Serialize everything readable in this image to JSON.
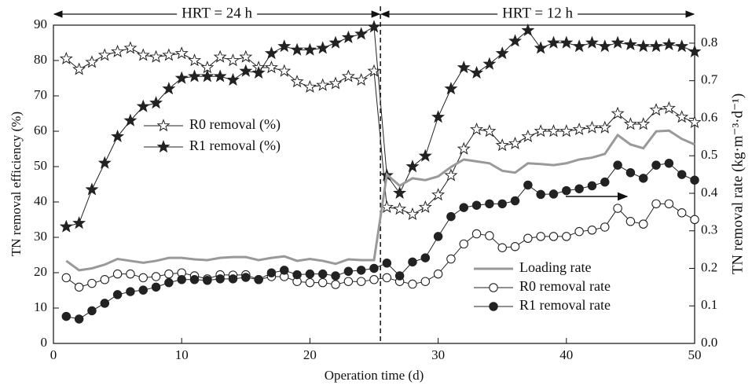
{
  "chart_data": {
    "type": "line",
    "x_label": "Operation time (d)",
    "y_label": "TN removal efficiency (%)",
    "y2_label": "TN  removal rate (kg·m⁻³·d⁻¹)",
    "x": [
      1,
      2,
      3,
      4,
      5,
      6,
      7,
      8,
      9,
      10,
      11,
      12,
      13,
      14,
      15,
      16,
      17,
      18,
      19,
      20,
      21,
      22,
      23,
      24,
      25,
      26,
      27,
      28,
      29,
      30,
      31,
      32,
      33,
      34,
      35,
      36,
      37,
      38,
      39,
      40,
      41,
      42,
      43,
      44,
      45,
      46,
      47,
      48,
      49,
      50
    ],
    "xlim": [
      0,
      50
    ],
    "xticks": [
      0,
      10,
      20,
      30,
      40,
      50
    ],
    "ylim": [
      0,
      90
    ],
    "yticks": [
      0,
      10,
      20,
      30,
      40,
      50,
      60,
      70,
      80,
      90
    ],
    "y2lim": [
      0,
      0.848
    ],
    "y2ticks": [
      {
        "value": 0,
        "label": "0.0"
      },
      0.1,
      0.2,
      0.3,
      0.4,
      0.5,
      0.6,
      0.7,
      0.8
    ],
    "annotations": [
      {
        "text": "HRT = 24 h",
        "from": 0,
        "to": 25.5
      },
      {
        "text": "HRT = 12 h",
        "from": 25.5,
        "to": 50
      }
    ],
    "series": [
      {
        "name": "R0 removal (%)",
        "color": "#222222",
        "marker": "open-star",
        "values": [
          80.5,
          77.5,
          79.5,
          81.5,
          82.5,
          83.5,
          81.5,
          81,
          81.5,
          82,
          80,
          78,
          81,
          80,
          81,
          78,
          78,
          77,
          74,
          72.5,
          73,
          73.5,
          75.5,
          74.5,
          77,
          38.5,
          38,
          36.5,
          38.5,
          42,
          47.5,
          55,
          60.5,
          60,
          56,
          56.5,
          58.5,
          60,
          60,
          60,
          60.5,
          61,
          61,
          65,
          62,
          62,
          66,
          66.5,
          64,
          62.5
        ]
      },
      {
        "name": "R1 removal (%)",
        "color": "#222222",
        "marker": "filled-star",
        "values": [
          33,
          34,
          43.5,
          51,
          58.5,
          63,
          67,
          68,
          72,
          75,
          75.5,
          75.5,
          75.5,
          74.5,
          77,
          76.5,
          82,
          84,
          83,
          83,
          83.5,
          85,
          86.5,
          87.5,
          89.5,
          47.5,
          42.5,
          50,
          53,
          64,
          72,
          78,
          76.5,
          79,
          82,
          85.5,
          88.5,
          83.5,
          85,
          85,
          84,
          85,
          84,
          85,
          84.5,
          84,
          84,
          84.5,
          84,
          82.5
        ]
      },
      {
        "name": "Loading rate",
        "color": "#999999",
        "marker": "none",
        "axis": "y2",
        "values": [
          0.22,
          0.195,
          0.2,
          0.21,
          0.225,
          0.22,
          0.215,
          0.22,
          0.228,
          0.228,
          0.224,
          0.222,
          0.228,
          0.23,
          0.23,
          0.222,
          0.228,
          0.232,
          0.22,
          0.225,
          0.22,
          0.212,
          0.224,
          0.222,
          0.222,
          0.45,
          0.42,
          0.44,
          0.435,
          0.445,
          0.47,
          0.49,
          0.485,
          0.48,
          0.46,
          0.455,
          0.48,
          0.478,
          0.475,
          0.48,
          0.49,
          0.495,
          0.505,
          0.555,
          0.53,
          0.52,
          0.565,
          0.567,
          0.545,
          0.53
        ]
      },
      {
        "name": "R0 removal rate",
        "color": "#222222",
        "marker": "open-circle",
        "axis": "y2",
        "values": [
          0.175,
          0.15,
          0.16,
          0.17,
          0.185,
          0.185,
          0.175,
          0.178,
          0.185,
          0.188,
          0.18,
          0.172,
          0.183,
          0.182,
          0.183,
          0.17,
          0.178,
          0.178,
          0.165,
          0.162,
          0.162,
          0.157,
          0.165,
          0.165,
          0.17,
          0.175,
          0.165,
          0.158,
          0.165,
          0.185,
          0.225,
          0.265,
          0.292,
          0.287,
          0.255,
          0.258,
          0.28,
          0.285,
          0.285,
          0.285,
          0.298,
          0.302,
          0.31,
          0.36,
          0.325,
          0.318,
          0.372,
          0.372,
          0.348,
          0.33
        ]
      },
      {
        "name": "R1 removal rate",
        "color": "#222222",
        "marker": "filled-circle",
        "axis": "y2",
        "values": [
          0.072,
          0.065,
          0.087,
          0.107,
          0.13,
          0.138,
          0.142,
          0.15,
          0.162,
          0.17,
          0.17,
          0.168,
          0.172,
          0.172,
          0.176,
          0.17,
          0.188,
          0.195,
          0.183,
          0.185,
          0.185,
          0.18,
          0.192,
          0.195,
          0.2,
          0.214,
          0.18,
          0.217,
          0.228,
          0.285,
          0.338,
          0.362,
          0.368,
          0.372,
          0.372,
          0.38,
          0.422,
          0.397,
          0.398,
          0.407,
          0.412,
          0.42,
          0.43,
          0.475,
          0.455,
          0.44,
          0.475,
          0.48,
          0.45,
          0.435
        ]
      }
    ]
  }
}
